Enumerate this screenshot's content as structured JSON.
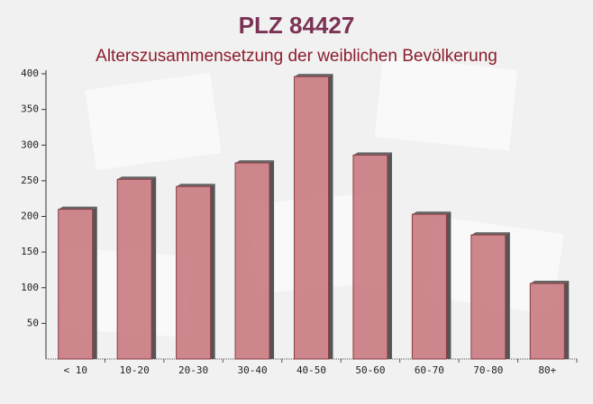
{
  "chart_data": {
    "type": "bar",
    "title": "PLZ 84427",
    "subtitle": "Alterszusammensetzung der weiblichen Bevölkerung",
    "categories": [
      "< 10",
      "10-20",
      "20-30",
      "30-40",
      "40-50",
      "50-60",
      "60-70",
      "70-80",
      "80+"
    ],
    "values": [
      210,
      252,
      242,
      275,
      396,
      286,
      203,
      174,
      106
    ],
    "color": "#c97a80",
    "ylim": [
      0,
      400
    ],
    "yticks": [
      50,
      100,
      150,
      200,
      250,
      300,
      350,
      400
    ]
  }
}
